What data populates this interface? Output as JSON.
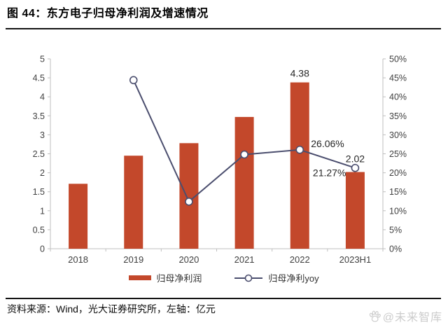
{
  "header": {
    "title": "图 44：东方电子归母净利润及增速情况"
  },
  "footer": {
    "source": "资料来源：Wind，光大证券研究所，左轴：亿元"
  },
  "watermark": {
    "icon": "baidu-paw-icon",
    "text": "@未来智库"
  },
  "colors": {
    "bar": "#c3482b",
    "line": "#4b4e6e",
    "axis": "#bfbfbf",
    "axis_text": "#404040",
    "annotation_text": "#262626"
  },
  "legend": {
    "items": [
      {
        "label": "归母净利润",
        "kind": "bar"
      },
      {
        "label": "归母净利yoy",
        "kind": "line"
      }
    ]
  },
  "chart_data": {
    "type": "bar",
    "subtype": "bar+line-dual-axis",
    "title": "东方电子归母净利润及增速情况",
    "categories": [
      "2018",
      "2019",
      "2020",
      "2021",
      "2022",
      "2023H1"
    ],
    "series": [
      {
        "name": "归母净利润",
        "type": "bar",
        "axis": "left",
        "unit": "亿元",
        "values": [
          1.71,
          2.45,
          2.78,
          3.47,
          4.38,
          2.02
        ],
        "labels": [
          null,
          null,
          null,
          null,
          "4.38",
          "2.02"
        ]
      },
      {
        "name": "归母净利yoy",
        "type": "line",
        "axis": "right",
        "unit": "%",
        "values": [
          null,
          44.4,
          12.4,
          24.8,
          26.06,
          21.27
        ],
        "labels": [
          null,
          null,
          null,
          null,
          "26.06%",
          "21.27%"
        ],
        "label_pos": [
          null,
          null,
          null,
          null,
          "upper-right",
          "lower-left"
        ]
      }
    ],
    "left_axis": {
      "min": 0,
      "max": 5,
      "step": 0.5,
      "tick_labels": [
        "5",
        "4.5",
        "4",
        "3.5",
        "3",
        "2.5",
        "2",
        "1.5",
        "1",
        "0.5",
        "0"
      ]
    },
    "right_axis": {
      "min": 0,
      "max": 50,
      "step": 5,
      "tick_labels": [
        "50%",
        "45%",
        "40%",
        "35%",
        "30%",
        "25%",
        "20%",
        "15%",
        "10%",
        "5%",
        "0%"
      ]
    },
    "grid": false,
    "legend_position": "bottom"
  }
}
